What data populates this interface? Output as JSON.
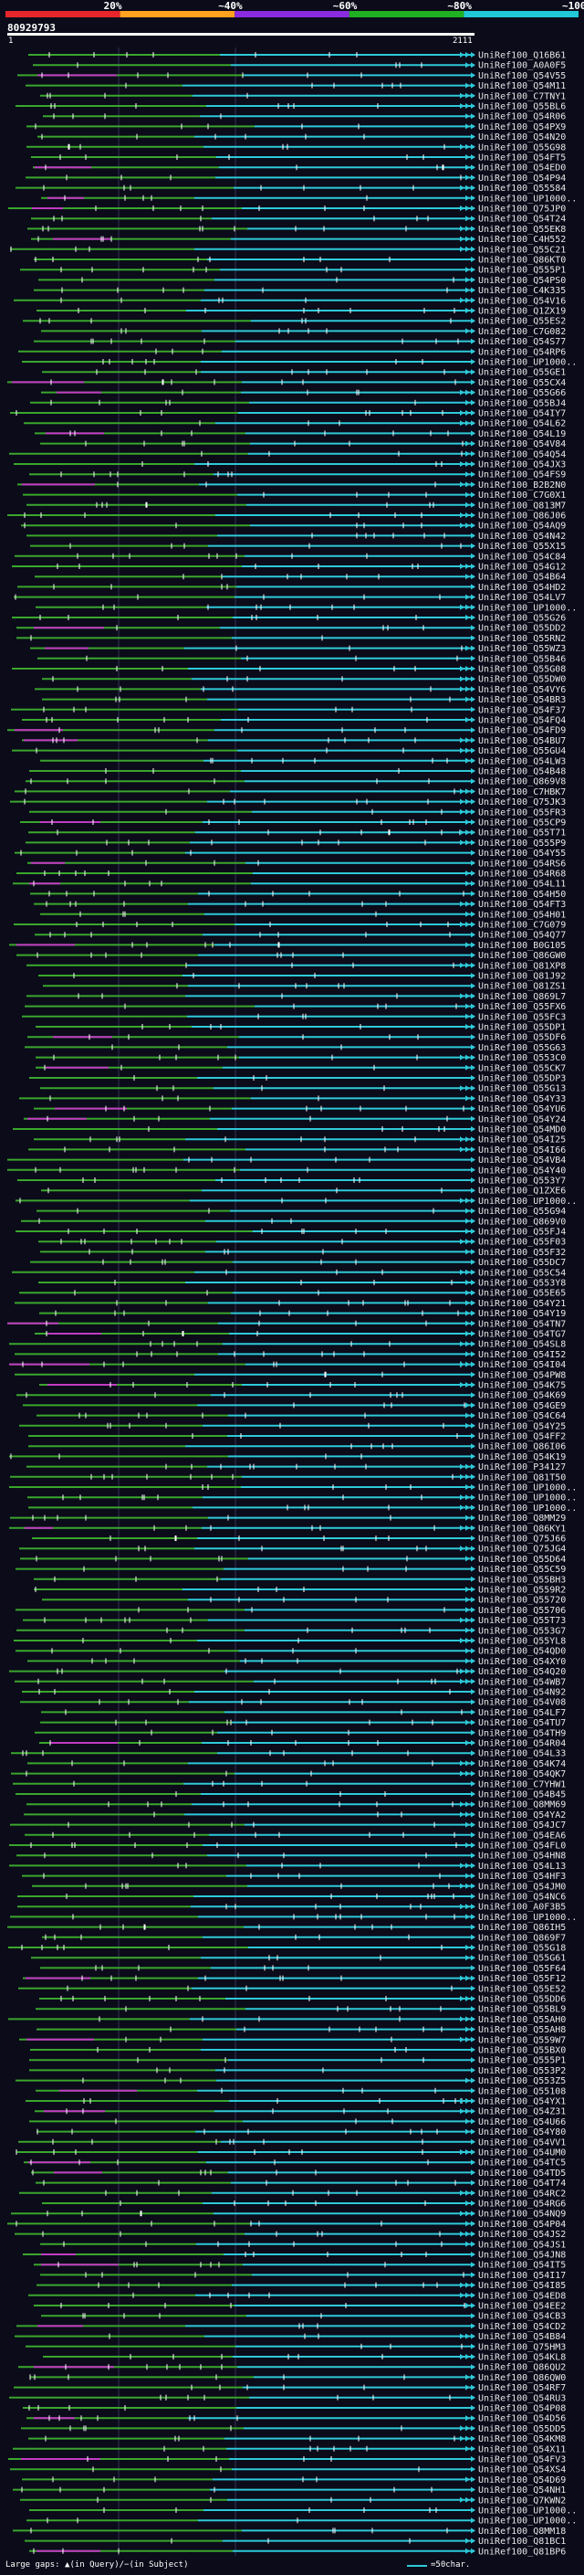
{
  "scale": {
    "ticks": [
      "20%",
      "~40%",
      "~60%",
      "~80%",
      "~100%"
    ],
    "colors": [
      "#e6262b",
      "#ffa21f",
      "#8a2be2",
      "#21b021",
      "#20c8d8"
    ]
  },
  "header": {
    "query_id": "80929793",
    "ruler_left": "1",
    "ruler_right": "2111"
  },
  "colors": {
    "background": "#0b0b1a",
    "cyan": "#2ec9d8",
    "green": "#3aa62c",
    "magenta": "#c23bc2",
    "yellow": "#d7d93c",
    "white": "#ffffff"
  },
  "hits": [
    "UniRef100_Q16B61",
    "UniRef100_A0A0F5",
    "UniRef100_Q54V55",
    "UniRef100_Q54M11",
    "UniRef100_C7TNY1",
    "UniRef100_Q55BL6",
    "UniRef100_Q54R06",
    "UniRef100_Q54PX9",
    "UniRef100_Q54N20",
    "UniRef100_Q55G98",
    "UniRef100_Q54FT5",
    "UniRef100_Q54ED0",
    "UniRef100_Q54P94",
    "UniRef100_Q55584",
    "UniRef100_UP1000..",
    "UniRef100_Q75JP0",
    "UniRef100_Q54T24",
    "UniRef100_Q55EK8",
    "UniRef100_C4H552",
    "UniRef100_Q55C21",
    "UniRef100_Q86KT0",
    "UniRef100_Q555P1",
    "UniRef100_Q54PS0",
    "UniRef100_C4K335",
    "UniRef100_Q54V16",
    "UniRef100_Q1ZX19",
    "UniRef100_Q55ES2",
    "UniRef100_C7G082",
    "UniRef100_Q54S77",
    "UniRef100_Q54RP6",
    "UniRef100_UP1000..",
    "UniRef100_Q55GE1",
    "UniRef100_Q55CX4",
    "UniRef100_Q55G66",
    "UniRef100_Q55BJ4",
    "UniRef100_Q54IY7",
    "UniRef100_Q54L62",
    "UniRef100_Q54L19",
    "UniRef100_Q54V84",
    "UniRef100_Q54Q54",
    "UniRef100_Q54JX3",
    "UniRef100_Q54FS9",
    "UniRef100_B2B2N0",
    "UniRef100_C7G0X1",
    "UniRef100_Q813M7",
    "UniRef100_Q86J06",
    "UniRef100_Q54AQ9",
    "UniRef100_Q54N42",
    "UniRef100_Q55X15",
    "UniRef100_Q54C84",
    "UniRef100_Q54G12",
    "UniRef100_Q54B64",
    "UniRef100_Q54HD2",
    "UniRef100_Q54LV7",
    "UniRef100_UP1000..",
    "UniRef100_Q55G26",
    "UniRef100_Q55DD2",
    "UniRef100_Q55RN2",
    "UniRef100_Q55WZ3",
    "UniRef100_Q55B46",
    "UniRef100_Q55G08",
    "UniRef100_Q55DW0",
    "UniRef100_Q54VY6",
    "UniRef100_Q54BR3",
    "UniRef100_Q54F37",
    "UniRef100_Q54FQ4",
    "UniRef100_Q54FD9",
    "UniRef100_Q54BU7",
    "UniRef100_Q55GU4",
    "UniRef100_Q54LW3",
    "UniRef100_Q54B48",
    "UniRef100_Q869V8",
    "UniRef100_C7HBK7",
    "UniRef100_Q75JK3",
    "UniRef100_Q55FR3",
    "UniRef100_Q55CP9",
    "UniRef100_Q55T71",
    "UniRef100_Q555P9",
    "UniRef100_Q54Y55",
    "UniRef100_Q54RS6",
    "UniRef100_Q54R68",
    "UniRef100_Q54L11",
    "UniRef100_Q54H50",
    "UniRef100_Q54FT3",
    "UniRef100_Q54H01",
    "UniRef100_C7G079",
    "UniRef100_Q54Q77",
    "UniRef100_B0G105",
    "UniRef100_Q86GW0",
    "UniRef100_Q81XP8",
    "UniRef100_Q81J92",
    "UniRef100_Q81ZS1",
    "UniRef100_Q869L7",
    "UniRef100_Q55FX6",
    "UniRef100_Q55FC3",
    "UniRef100_Q55DP1",
    "UniRef100_Q55DF6",
    "UniRef100_Q55G63",
    "UniRef100_Q553C0",
    "UniRef100_Q55CK7",
    "UniRef100_Q55DP3",
    "UniRef100_Q55G13",
    "UniRef100_Q54Y33",
    "UniRef100_Q54YU6",
    "UniRef100_Q54Y24",
    "UniRef100_Q54MD0",
    "UniRef100_Q54I25",
    "UniRef100_Q54I66",
    "UniRef100_Q54VB4",
    "UniRef100_Q54Y40",
    "UniRef100_Q553Y7",
    "UniRef100_Q1ZXE6",
    "UniRef100_UP1000..",
    "UniRef100_Q55G94",
    "UniRef100_Q869V0",
    "UniRef100_Q55FJ4",
    "UniRef100_Q55F03",
    "UniRef100_Q55F32",
    "UniRef100_Q55DC7",
    "UniRef100_Q55C54",
    "UniRef100_Q553Y8",
    "UniRef100_Q55E65",
    "UniRef100_Q54Y21",
    "UniRef100_Q54Y19",
    "UniRef100_Q54TN7",
    "UniRef100_Q54TG7",
    "UniRef100_Q54SL8",
    "UniRef100_Q54I52",
    "UniRef100_Q54I04",
    "UniRef100_Q54PW8",
    "UniRef100_Q54K75",
    "UniRef100_Q54K69",
    "UniRef100_Q54GE9",
    "UniRef100_Q54C64",
    "UniRef100_Q54Y25",
    "UniRef100_Q54FF2",
    "UniRef100_Q86I06",
    "UniRef100_Q54K19",
    "UniRef100_P34127",
    "UniRef100_Q81T50",
    "UniRef100_UP1000..",
    "UniRef100_UP1000..",
    "UniRef100_UP1000..",
    "UniRef100_Q8MM29",
    "UniRef100_Q86KY1",
    "UniRef100_Q75J66",
    "UniRef100_Q75JG4",
    "UniRef100_Q55D64",
    "UniRef100_Q55C59",
    "UniRef100_Q55BH3",
    "UniRef100_Q559R2",
    "UniRef100_Q55720",
    "UniRef100_Q55706",
    "UniRef100_Q55T73",
    "UniRef100_Q553G7",
    "UniRef100_Q55YL8",
    "UniRef100_Q54QD0",
    "UniRef100_Q54XY0",
    "UniRef100_Q54Q20",
    "UniRef100_Q54WB7",
    "UniRef100_Q54N92",
    "UniRef100_Q54V08",
    "UniRef100_Q54LF7",
    "UniRef100_Q54TU7",
    "UniRef100_Q54TH9",
    "UniRef100_Q54R04",
    "UniRef100_Q54L33",
    "UniRef100_Q54K74",
    "UniRef100_Q54QK7",
    "UniRef100_C7YHW1",
    "UniRef100_Q54B45",
    "UniRef100_Q8MM69",
    "UniRef100_Q54YA2",
    "UniRef100_Q54JC7",
    "UniRef100_Q54EA6",
    "UniRef100_Q54FL0",
    "UniRef100_Q54HN8",
    "UniRef100_Q54L13",
    "UniRef100_Q54HF3",
    "UniRef100_Q54JM0",
    "UniRef100_Q54NC6",
    "UniRef100_A0F3B5",
    "UniRef100_UP1000..",
    "UniRef100_Q86IH5",
    "UniRef100_Q869F7",
    "UniRef100_Q55G18",
    "UniRef100_Q55G61",
    "UniRef100_Q55F64",
    "UniRef100_Q55F12",
    "UniRef100_Q55E52",
    "UniRef100_Q55DD6",
    "UniRef100_Q55BL9",
    "UniRef100_Q55AH0",
    "UniRef100_Q55AH8",
    "UniRef100_Q559W7",
    "UniRef100_Q55BX0",
    "UniRef100_Q555P1",
    "UniRef100_Q553P2",
    "UniRef100_Q553Z5",
    "UniRef100_Q55108",
    "UniRef100_Q54YX1",
    "UniRef100_Q54Z31",
    "UniRef100_Q54U66",
    "UniRef100_Q54Y80",
    "UniRef100_Q54VV1",
    "UniRef100_Q54UM0",
    "UniRef100_Q54TC5",
    "UniRef100_Q54TD5",
    "UniRef100_Q54T74",
    "UniRef100_Q54RC2",
    "UniRef100_Q54RG6",
    "UniRef100_Q54NQ9",
    "UniRef100_Q54P04",
    "UniRef100_Q54JS2",
    "UniRef100_Q54JS1",
    "UniRef100_Q54JN8",
    "UniRef100_Q54IT5",
    "UniRef100_Q54I17",
    "UniRef100_Q54I85",
    "UniRef100_Q54ED8",
    "UniRef100_Q54EE2",
    "UniRef100_Q54CB3",
    "UniRef100_Q54CD2",
    "UniRef100_Q54B84",
    "UniRef100_Q75HM3",
    "UniRef100_Q54KL8",
    "UniRef100_Q86QU2",
    "UniRef100_Q86QW0",
    "UniRef100_Q54RF7",
    "UniRef100_Q54RU3",
    "UniRef100_Q54P08",
    "UniRef100_Q54D56",
    "UniRef100_Q55DD5",
    "UniRef100_Q54KM8",
    "UniRef100_Q54X11",
    "UniRef100_Q54FV3",
    "UniRef100_Q54XS4",
    "UniRef100_Q54D69",
    "UniRef100_Q54NH1",
    "UniRef100_Q7KWN2",
    "UniRef100_UP1000..",
    "UniRef100_UP1000..",
    "UniRef100_Q8MM18",
    "UniRef100_Q81BC1",
    "UniRef100_Q81BP6"
  ],
  "footer": {
    "legend_text": "Large gaps: ▲(in Query)/−(in Subject)",
    "scale_text": "=50char."
  }
}
